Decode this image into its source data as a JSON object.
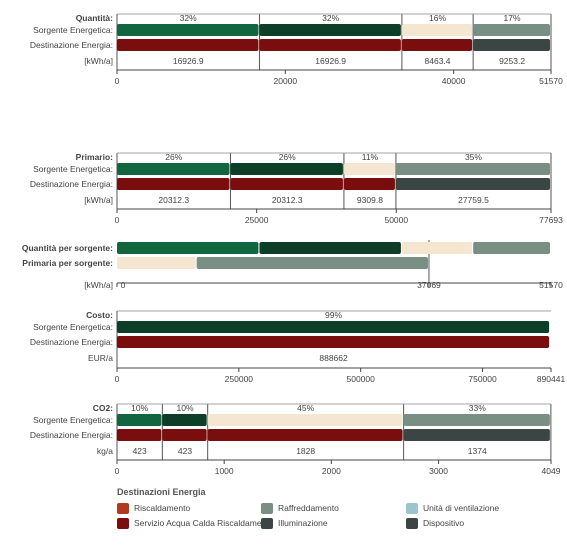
{
  "chart_data": [
    {
      "type": "bar",
      "id": "quantita",
      "title": "Quantità:",
      "row_labels": [
        "Sorgente Energetica:",
        "Destinazione Energia:"
      ],
      "unit": "[kWh/a]",
      "x_range": [
        0,
        51570
      ],
      "ticks": [
        "0",
        "20000",
        "40000",
        "51570"
      ],
      "percent_labels": [
        "32%",
        "32%",
        "16%",
        "17%"
      ],
      "value_labels": [
        "16926.9",
        "16926.9",
        "8463.4",
        "9253.2"
      ],
      "segments": [
        16926.9,
        16926.9,
        8463.4,
        9253.2
      ],
      "source_colors": [
        "#12663f",
        "#0d3f28",
        "#f4e6d0",
        "#7a8f84"
      ],
      "destination_colors": [
        "#7a0e0e",
        "#7a0e0e",
        "#7a0e0e",
        "#3b4644"
      ]
    },
    {
      "type": "bar",
      "id": "primario",
      "title": "Primario:",
      "row_labels": [
        "Sorgente Energetica:",
        "Destinazione Energia:"
      ],
      "unit": "[kWh/a]",
      "x_range": [
        0,
        77693
      ],
      "ticks": [
        "0",
        "25000",
        "50000",
        "77693"
      ],
      "percent_labels": [
        "26%",
        "26%",
        "11%",
        "35%"
      ],
      "value_labels": [
        "20312.3",
        "20312.3",
        "9309.8",
        "27759.5"
      ],
      "segments": [
        20312.3,
        20312.3,
        9309.8,
        27759.5
      ],
      "source_colors": [
        "#12663f",
        "#0d3f28",
        "#f4e6d0",
        "#7a8f84"
      ],
      "destination_colors": [
        "#7a0e0e",
        "#7a0e0e",
        "#7a0e0e",
        "#3b4644"
      ]
    },
    {
      "type": "bar",
      "id": "per-sorgente",
      "row_labels": [
        "Quantità per sorgente:",
        "Primaria per sorgente:"
      ],
      "unit": "[kWh/a]",
      "x_range": [
        0,
        51570
      ],
      "ticks": [
        "0",
        "37069",
        "51570"
      ],
      "quantity_segments": [
        16926.9,
        16926.9,
        8463.4,
        9253.2
      ],
      "quantity_colors": [
        "#12663f",
        "#0d3f28",
        "#f4e6d0",
        "#7a8f84"
      ],
      "primary_segments": [
        9465,
        27604
      ],
      "primary_colors": [
        "#f4e6d0",
        "#7a8f84"
      ]
    },
    {
      "type": "bar",
      "id": "costo",
      "title": "Costo:",
      "row_labels": [
        "Sorgente Energetica:",
        "Destinazione Energia:"
      ],
      "unit": "EUR/a",
      "x_range": [
        0,
        890441
      ],
      "ticks": [
        "0",
        "250000",
        "500000",
        "750000",
        "890441"
      ],
      "percent_labels": [
        "99%"
      ],
      "value_labels": [
        "888662"
      ],
      "segments": [
        888662
      ],
      "source_colors": [
        "#0d3f28"
      ],
      "destination_colors": [
        "#7a0e0e"
      ]
    },
    {
      "type": "bar",
      "id": "co2",
      "title": "CO2:",
      "row_labels": [
        "Sorgente Energetica:",
        "Destinazione Energia:"
      ],
      "unit": "kg/a",
      "x_range": [
        0,
        4049
      ],
      "ticks": [
        "0",
        "1000",
        "2000",
        "3000",
        "4049"
      ],
      "percent_labels": [
        "10%",
        "10%",
        "45%",
        "33%"
      ],
      "value_labels": [
        "423",
        "423",
        "1828",
        "1374"
      ],
      "segments": [
        423,
        423,
        1828,
        1374
      ],
      "source_colors": [
        "#12663f",
        "#0d3f28",
        "#f4e6d0",
        "#7a8f84"
      ],
      "destination_colors": [
        "#7a0e0e",
        "#7a0e0e",
        "#7a0e0e",
        "#3b4644"
      ]
    }
  ],
  "legend": {
    "title": "Destinazioni Energia",
    "items": [
      {
        "label": "Riscaldamento",
        "color": "#b03a1e"
      },
      {
        "label": "Raffreddamento",
        "color": "#7a8f84"
      },
      {
        "label": "Unità di ventilazione",
        "color": "#9cc4cf"
      },
      {
        "label": "Servizio Acqua Calda Riscaldamento",
        "color": "#7a0e0e"
      },
      {
        "label": "Illuminazione",
        "color": "#3b4644"
      },
      {
        "label": "Dispositivo",
        "color": "#3b4644"
      }
    ]
  }
}
